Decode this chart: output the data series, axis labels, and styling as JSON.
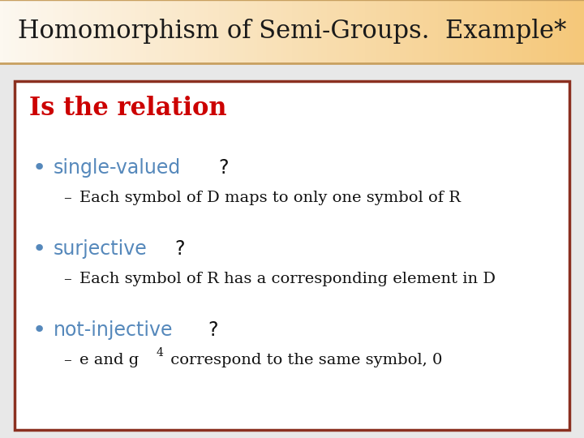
{
  "title": "Homomorphism of Semi-Groups.  Example*",
  "title_bg_top": "#fdf3e3",
  "title_bg_bottom": "#f0c896",
  "title_border_color": "#c8a060",
  "title_text_color": "#1a1a1a",
  "title_fontsize": 22,
  "slide_bg_color": "#e8e8e8",
  "content_bg_color": "#ffffff",
  "content_border_color": "#8b3020",
  "heading_text": "Is the relation",
  "heading_color": "#cc0000",
  "heading_fontsize": 22,
  "bullet_color": "#5588bb",
  "bullet_fontsize": 17,
  "sub_fontsize": 14,
  "sub_text_color": "#111111",
  "bullets": [
    {
      "label": "single-valued",
      "label_color": "#5588bb",
      "suffix": "?",
      "sub": "Each symbol of D maps to only one symbol of R"
    },
    {
      "label": "surjective",
      "label_color": "#5588bb",
      "suffix": "?",
      "sub": "Each symbol of R has a corresponding element in D"
    },
    {
      "label": "not-injective",
      "label_color": "#5588bb",
      "suffix": "?",
      "sub_parts": [
        "e and g",
        "4",
        " correspond to the same symbol, 0"
      ]
    }
  ]
}
